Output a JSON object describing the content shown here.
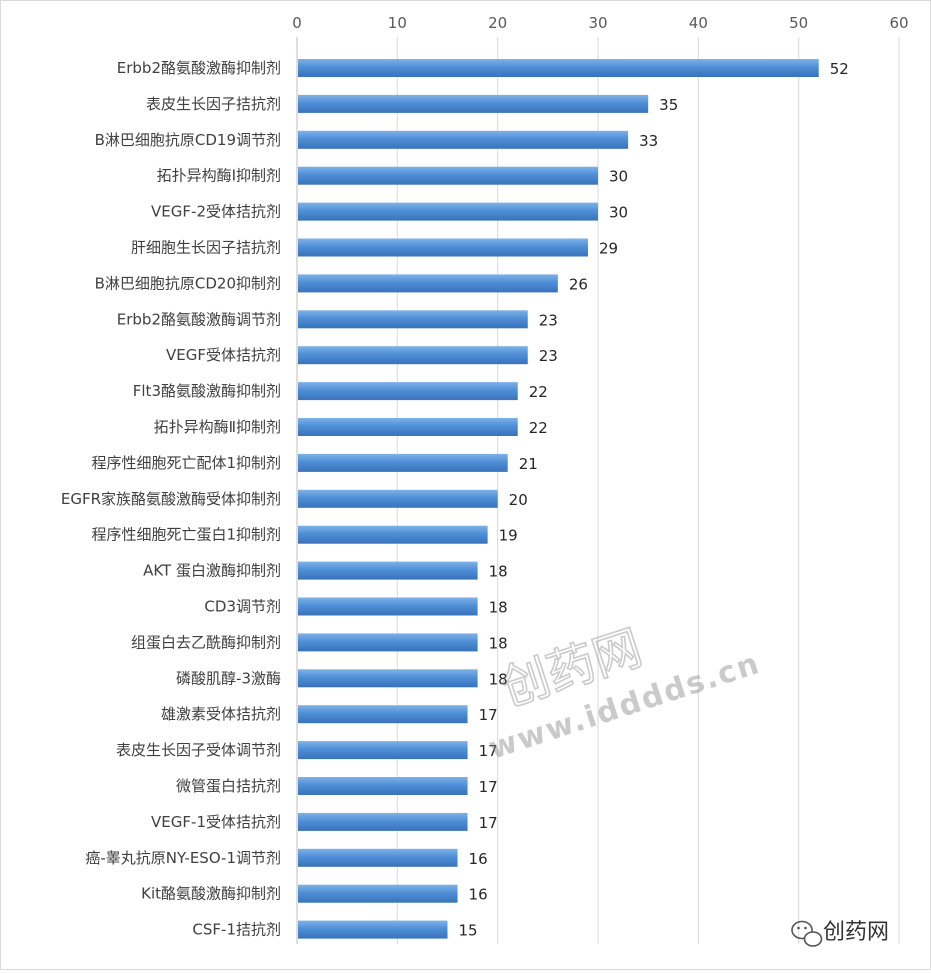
{
  "chart_data": {
    "type": "bar",
    "orientation": "horizontal",
    "categories": [
      "Erbb2酪氨酸激酶抑制剂",
      "表皮生长因子拮抗剂",
      "B淋巴细胞抗原CD19调节剂",
      "拓扑异构酶Ⅰ抑制剂",
      "VEGF-2受体拮抗剂",
      "肝细胞生长因子拮抗剂",
      "B淋巴细胞抗原CD20抑制剂",
      "Erbb2酪氨酸激酶调节剂",
      "VEGF受体拮抗剂",
      "Flt3酪氨酸激酶抑制剂",
      "拓扑异构酶Ⅱ抑制剂",
      "程序性细胞死亡配体1抑制剂",
      "EGFR家族酪氨酸激酶受体抑制剂",
      "程序性细胞死亡蛋白1抑制剂",
      "AKT 蛋白激酶抑制剂",
      "CD3调节剂",
      "组蛋白去乙酰酶抑制剂",
      "磷酸肌醇-3激酶",
      "雄激素受体拮抗剂",
      "表皮生长因子受体调节剂",
      "微管蛋白拮抗剂",
      "VEGF-1受体拮抗剂",
      "癌-睾丸抗原NY-ESO-1调节剂",
      "Kit酪氨酸激酶抑制剂",
      "CSF-1拮抗剂"
    ],
    "values": [
      52,
      35,
      33,
      30,
      30,
      29,
      26,
      23,
      23,
      22,
      22,
      21,
      20,
      19,
      18,
      18,
      18,
      18,
      17,
      17,
      17,
      17,
      16,
      16,
      15
    ],
    "xlim": [
      0,
      60
    ],
    "xticks": [
      "0",
      "10",
      "20",
      "30",
      "40",
      "50",
      "60"
    ],
    "x_axis_position": "top",
    "grid": true,
    "data_labels": true,
    "bar_color": "#4a8ad2",
    "title": "",
    "xlabel": "",
    "ylabel": ""
  },
  "watermark": {
    "main": "创药网",
    "url": "www.idddds.cn"
  },
  "footer_logo": {
    "icon": "wechat-icon",
    "text": "创药网"
  }
}
